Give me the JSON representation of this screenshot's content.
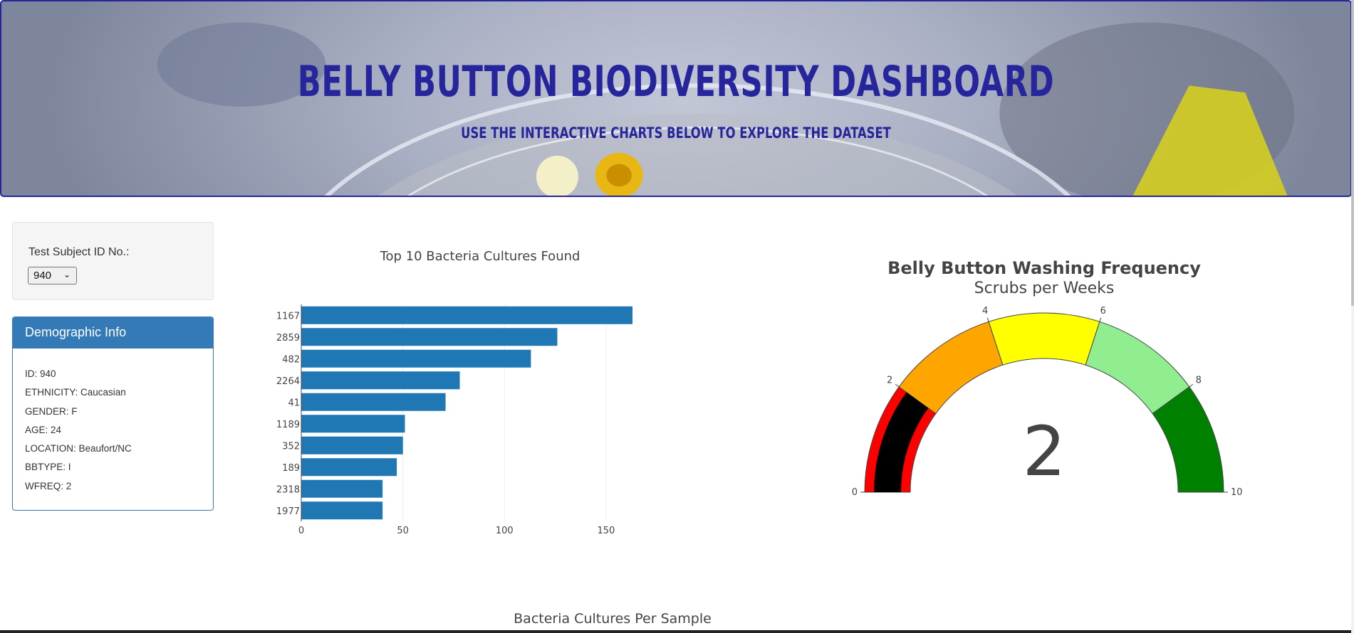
{
  "header": {
    "title": "Belly Button Biodiversity Dashboard",
    "subtitle": "Use the interactive charts below to explore the dataset"
  },
  "selector": {
    "label": "Test Subject ID No.:",
    "selected_value": "940"
  },
  "demographics": {
    "heading": "Demographic Info",
    "rows": [
      "ID: 940",
      "ETHNICITY: Caucasian",
      "GENDER: F",
      "AGE: 24",
      "LOCATION: Beaufort/NC",
      "BBTYPE: I",
      "WFREQ: 2"
    ]
  },
  "bubble": {
    "title": "Bacteria Cultures Per Sample"
  },
  "colors": {
    "header_text": "#26259c",
    "bar": "#1f77b4",
    "panel": "#337ab7"
  },
  "chart_data": [
    {
      "type": "bar",
      "orientation": "horizontal",
      "title": "Top 10 Bacteria Cultures Found",
      "categories": [
        "1167",
        "2859",
        "482",
        "2264",
        "41",
        "1189",
        "352",
        "189",
        "2318",
        "1977"
      ],
      "values": [
        163,
        126,
        113,
        78,
        71,
        51,
        50,
        47,
        40,
        40
      ],
      "xlim": [
        0,
        170
      ],
      "x_ticks": [
        0,
        50,
        100,
        150
      ],
      "grid": true
    },
    {
      "type": "gauge",
      "title": "Belly Button Washing Frequency",
      "subtitle": "Scrubs per Weeks",
      "value": 2,
      "range": [
        0,
        10
      ],
      "ticks": [
        0,
        2,
        4,
        6,
        8,
        10
      ],
      "steps": [
        {
          "range": [
            0,
            2
          ],
          "color": "#ff0000"
        },
        {
          "range": [
            2,
            4
          ],
          "color": "#ffa500"
        },
        {
          "range": [
            4,
            6
          ],
          "color": "#ffff00"
        },
        {
          "range": [
            6,
            8
          ],
          "color": "#90ee90"
        },
        {
          "range": [
            8,
            10
          ],
          "color": "#008000"
        }
      ],
      "bar_color": "#000000"
    }
  ]
}
